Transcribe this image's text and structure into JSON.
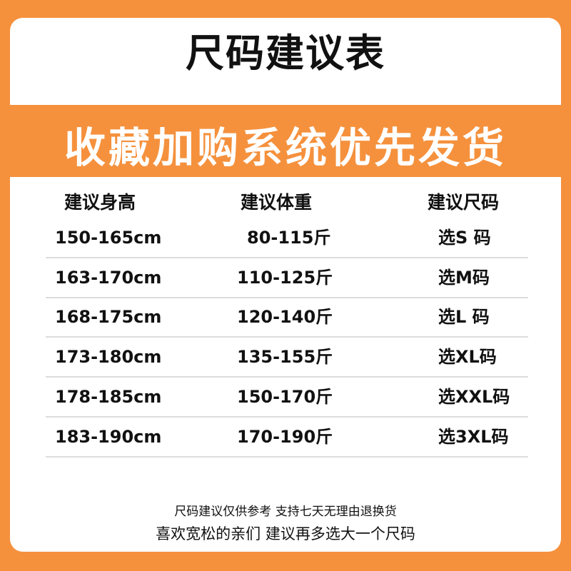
{
  "colors": {
    "background": "#f5913d",
    "card": "#ffffff",
    "text": "#111111",
    "banner_text": "#ffffff"
  },
  "title": "尺码建议表",
  "banner": "收藏加购系统优先发货",
  "table": {
    "headers": [
      "建议身高",
      "建议体重",
      "建议尺码"
    ],
    "rows": [
      [
        "150-165cm",
        "80-115斤",
        "选S 码"
      ],
      [
        "163-170cm",
        "110-125斤",
        "选M码"
      ],
      [
        "168-175cm",
        "120-140斤",
        "选L 码"
      ],
      [
        "173-180cm",
        "135-155斤",
        "选XL码"
      ],
      [
        "178-185cm",
        "150-170斤",
        "选XXL码"
      ],
      [
        "183-190cm",
        "170-190斤",
        "选3XL码"
      ]
    ]
  },
  "footer": {
    "line1": "尺码建议仅供参考 支持七天无理由退换货",
    "line2": "喜欢宽松的亲们 建议再多选大一个尺码"
  }
}
